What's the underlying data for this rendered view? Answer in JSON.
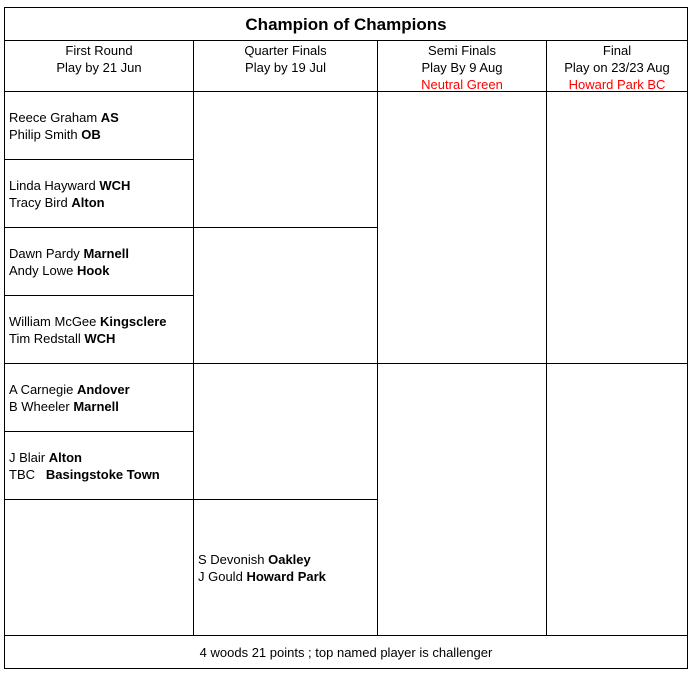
{
  "title": "Champion of Champions",
  "headers": [
    {
      "label": "First Round",
      "sub": "Play by 21 Jun",
      "venue": ""
    },
    {
      "label": "Quarter Finals",
      "sub": "Play by 19 Jul",
      "venue": ""
    },
    {
      "label": "Semi Finals",
      "sub": "Play By 9 Aug",
      "venue": "Neutral Green"
    },
    {
      "label": "Final",
      "sub": "Play on 23/23 Aug",
      "venue": "Howard Park BC"
    }
  ],
  "first_round": [
    {
      "p1": "Reece Graham",
      "c1": "AS",
      "p2": "Philip Smith",
      "c2": "OB"
    },
    {
      "p1": "Linda Hayward",
      "c1": "WCH",
      "p2": "Tracy Bird",
      "c2": "Alton"
    },
    {
      "p1": "Dawn Pardy",
      "c1": "Marnell",
      "p2": "Andy Lowe",
      "c2": "Hook"
    },
    {
      "p1": "William McGee",
      "c1": "Kingsclere",
      "p2": "Tim Redstall",
      "c2": "WCH"
    },
    {
      "p1": "A Carnegie",
      "c1": "Andover",
      "p2": "B Wheeler",
      "c2": "Marnell"
    },
    {
      "p1": "J Blair",
      "c1": "Alton",
      "p2": "TBC ",
      "c2": "Basingstoke Town"
    }
  ],
  "quarter_final_bye": {
    "p1": "S Devonish",
    "c1": "Oakley",
    "p2": "J Gould",
    "c2": "Howard Park"
  },
  "colors": {
    "venue": "#ff0000"
  },
  "footer": "4 woods 21 points ; top named player is challenger"
}
